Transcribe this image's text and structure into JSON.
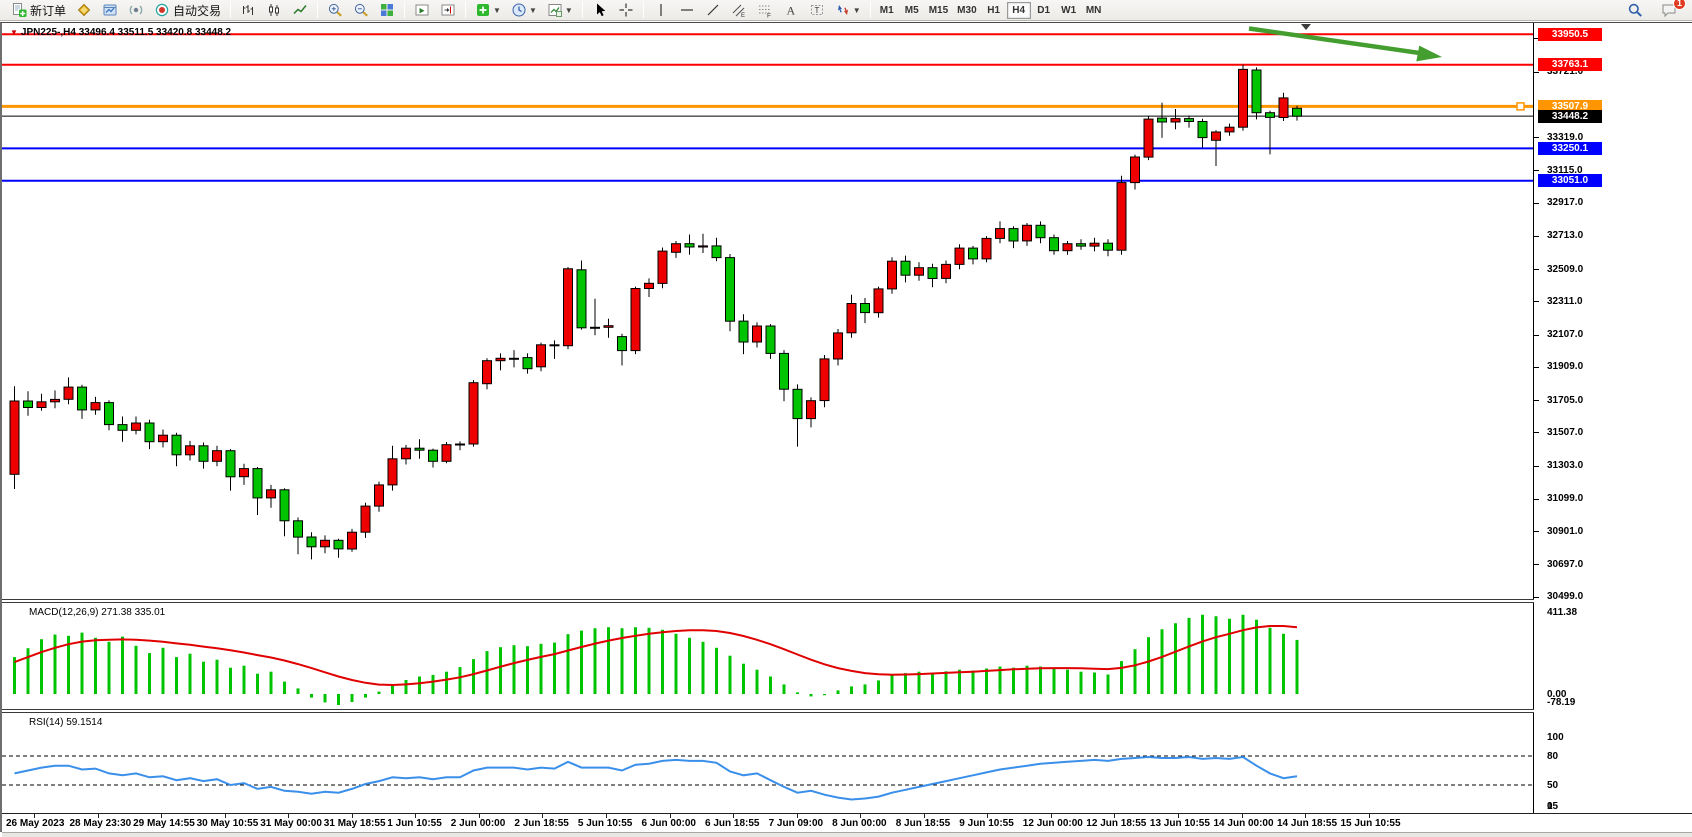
{
  "toolbar": {
    "new_order": "新订单",
    "autotrading": "自动交易",
    "badge": "1",
    "icon_names": [
      "new-order",
      "market-watch",
      "data-window",
      "strategy-tester",
      "autotrading",
      "bar-chart",
      "candlestick-chart",
      "line-chart",
      "zoom-in",
      "zoom-out",
      "tile-windows",
      "auto-scroll",
      "chart-shift",
      "indicators",
      "periods",
      "templates",
      "cursor",
      "crosshair",
      "vertical-line",
      "horizontal-line",
      "trendline",
      "equidistant-channel",
      "fibonacci",
      "text",
      "text-label",
      "arrows",
      "search",
      "chat"
    ],
    "timeframes": [
      "M1",
      "M5",
      "M15",
      "M30",
      "H1",
      "H4",
      "D1",
      "W1",
      "MN"
    ],
    "active_timeframe": "H4"
  },
  "chart": {
    "title": "JPN225-,H4 33496.4 33511.5 33420.8 33448.2",
    "symbol": "JPN225-",
    "period": "H4",
    "ohlc": {
      "open": "33496.4",
      "high": "33511.5",
      "low": "33420.8",
      "close": "33448.2"
    }
  },
  "macd_pane": {
    "label": "MACD(12,26,9) 271.38 335.01",
    "ticks": [
      {
        "label": "411.38",
        "value": 411.38
      },
      {
        "label": "0.00",
        "value": 0
      },
      {
        "label": "-78.19",
        "value": -78.19
      }
    ]
  },
  "rsi_pane": {
    "label": "RSI(14) 59.1514",
    "ticks": [
      {
        "label": "100",
        "value": 100
      },
      {
        "label": "80",
        "value": 80
      },
      {
        "label": "50",
        "value": 50
      },
      {
        "label": "15",
        "value": 15
      },
      {
        "label": "0",
        "value": 0
      }
    ]
  },
  "chart_data": {
    "type": "candlestick",
    "symbol": "JPN225-",
    "timeframe": "H4",
    "colors": {
      "up": "#ee0000",
      "down": "#00c400",
      "outline": "#000000",
      "macd_hist": "#00c400",
      "macd_signal": "#e00000",
      "rsi": "#3a8fea",
      "arrow": "#449e2f",
      "resistance": "#ff0000",
      "support": "#0000ff",
      "order": "#ff9500",
      "current": "#000000"
    },
    "levels": [
      {
        "label": "33950.5",
        "value": 33950.5,
        "color": "#ff0000",
        "type": "resistance"
      },
      {
        "label": "33763.1",
        "value": 33763.1,
        "color": "#ff0000",
        "type": "resistance"
      },
      {
        "label": "33507.9",
        "value": 33507.9,
        "color": "#ff9500",
        "type": "order",
        "handle": true
      },
      {
        "label": "33448.2",
        "value": 33448.2,
        "color": "#000000",
        "type": "current-price"
      },
      {
        "label": "33250.1",
        "value": 33250.1,
        "color": "#0000ff",
        "type": "support"
      },
      {
        "label": "33051.0",
        "value": 33051.0,
        "color": "#0000ff",
        "type": "support"
      }
    ],
    "y_axis_ticks": [
      {
        "label": "33925.0",
        "value": 33925.0
      },
      {
        "label": "33721.0",
        "value": 33721.0
      },
      {
        "label": "33319.0",
        "value": 33319.0
      },
      {
        "label": "33115.0",
        "value": 33115.0
      },
      {
        "label": "32917.0",
        "value": 32917.0
      },
      {
        "label": "32713.0",
        "value": 32713.0
      },
      {
        "label": "32509.0",
        "value": 32509.0
      },
      {
        "label": "32311.0",
        "value": 32311.0
      },
      {
        "label": "32107.0",
        "value": 32107.0
      },
      {
        "label": "31909.0",
        "value": 31909.0
      },
      {
        "label": "31705.0",
        "value": 31705.0
      },
      {
        "label": "31507.0",
        "value": 31507.0
      },
      {
        "label": "31303.0",
        "value": 31303.0
      },
      {
        "label": "31099.0",
        "value": 31099.0
      },
      {
        "label": "30901.0",
        "value": 30901.0
      },
      {
        "label": "30697.0",
        "value": 30697.0
      },
      {
        "label": "30499.0",
        "value": 30499.0
      }
    ],
    "x_axis_ticks": [
      "26 May 2023",
      "28 May 23:30",
      "29 May 14:55",
      "30 May 10:55",
      "31 May 00:00",
      "31 May 18:55",
      "1 Jun 10:55",
      "2 Jun 00:00",
      "2 Jun 18:55",
      "5 Jun 10:55",
      "6 Jun 00:00",
      "6 Jun 18:55",
      "7 Jun 09:00",
      "8 Jun 00:00",
      "8 Jun 18:55",
      "9 Jun 10:55",
      "12 Jun 00:00",
      "12 Jun 18:55",
      "13 Jun 10:55",
      "14 Jun 00:00",
      "14 Jun 18:55",
      "15 Jun 10:55"
    ],
    "candles": [
      [
        31250,
        31790,
        31160,
        31700
      ],
      [
        31700,
        31760,
        31610,
        31660
      ],
      [
        31660,
        31745,
        31640,
        31695
      ],
      [
        31695,
        31765,
        31655,
        31710
      ],
      [
        31710,
        31845,
        31680,
        31785
      ],
      [
        31785,
        31800,
        31590,
        31645
      ],
      [
        31645,
        31725,
        31615,
        31690
      ],
      [
        31690,
        31705,
        31520,
        31555
      ],
      [
        31555,
        31605,
        31450,
        31520
      ],
      [
        31520,
        31605,
        31495,
        31565
      ],
      [
        31565,
        31585,
        31405,
        31450
      ],
      [
        31450,
        31525,
        31415,
        31490
      ],
      [
        31490,
        31505,
        31300,
        31370
      ],
      [
        31370,
        31455,
        31335,
        31425
      ],
      [
        31425,
        31445,
        31285,
        31330
      ],
      [
        31330,
        31425,
        31300,
        31395
      ],
      [
        31395,
        31405,
        31150,
        31235
      ],
      [
        31235,
        31315,
        31185,
        31285
      ],
      [
        31285,
        31295,
        31000,
        31105
      ],
      [
        31105,
        31185,
        31045,
        31155
      ],
      [
        31155,
        31165,
        30870,
        30965
      ],
      [
        30965,
        30985,
        30760,
        30865
      ],
      [
        30865,
        30895,
        30728,
        30805
      ],
      [
        30805,
        30875,
        30765,
        30845
      ],
      [
        30845,
        30855,
        30738,
        30792
      ],
      [
        30792,
        30915,
        30775,
        30895
      ],
      [
        30895,
        31075,
        30860,
        31055
      ],
      [
        31055,
        31205,
        31020,
        31185
      ],
      [
        31185,
        31425,
        31150,
        31345
      ],
      [
        31345,
        31430,
        31310,
        31410
      ],
      [
        31410,
        31465,
        31345,
        31398
      ],
      [
        31398,
        31408,
        31292,
        31330
      ],
      [
        31330,
        31448,
        31318,
        31432
      ],
      [
        31432,
        31452,
        31398,
        31436
      ],
      [
        31436,
        31828,
        31420,
        31812
      ],
      [
        31806,
        31962,
        31772,
        31947
      ],
      [
        31947,
        31992,
        31888,
        31962
      ],
      [
        31962,
        32012,
        31906,
        31958
      ],
      [
        31966,
        31992,
        31868,
        31898
      ],
      [
        31910,
        32058,
        31882,
        32045
      ],
      [
        32045,
        32072,
        31958,
        32039
      ],
      [
        32039,
        32522,
        32018,
        32511
      ],
      [
        32505,
        32562,
        32138,
        32149
      ],
      [
        32149,
        32328,
        32104,
        32152
      ],
      [
        32152,
        32205,
        32088,
        32162
      ],
      [
        32095,
        32112,
        31918,
        32009
      ],
      [
        32009,
        32402,
        31988,
        32390
      ],
      [
        32390,
        32452,
        32338,
        32422
      ],
      [
        32422,
        32642,
        32392,
        32620
      ],
      [
        32612,
        32682,
        32578,
        32665
      ],
      [
        32665,
        32722,
        32598,
        32645
      ],
      [
        32645,
        32726,
        32608,
        32652
      ],
      [
        32652,
        32702,
        32558,
        32580
      ],
      [
        32580,
        32602,
        32128,
        32190
      ],
      [
        32190,
        32232,
        31988,
        32062
      ],
      [
        32062,
        32182,
        32028,
        32160
      ],
      [
        32160,
        32172,
        31958,
        31992
      ],
      [
        31992,
        32012,
        31698,
        31772
      ],
      [
        31772,
        31802,
        31420,
        31592
      ],
      [
        31592,
        31722,
        31538,
        31702
      ],
      [
        31702,
        31982,
        31662,
        31958
      ],
      [
        31958,
        32142,
        31918,
        32118
      ],
      [
        32118,
        32352,
        32088,
        32298
      ],
      [
        32298,
        32332,
        32178,
        32242
      ],
      [
        32242,
        32402,
        32212,
        32388
      ],
      [
        32388,
        32582,
        32358,
        32558
      ],
      [
        32558,
        32592,
        32428,
        32472
      ],
      [
        32472,
        32552,
        32438,
        32518
      ],
      [
        32518,
        32542,
        32398,
        32452
      ],
      [
        32452,
        32562,
        32422,
        32538
      ],
      [
        32538,
        32662,
        32508,
        32638
      ],
      [
        32638,
        32652,
        32538,
        32572
      ],
      [
        32572,
        32712,
        32552,
        32698
      ],
      [
        32698,
        32802,
        32668,
        32758
      ],
      [
        32758,
        32772,
        32638,
        32682
      ],
      [
        32682,
        32792,
        32652,
        32778
      ],
      [
        32778,
        32802,
        32668,
        32702
      ],
      [
        32702,
        32722,
        32598,
        32622
      ],
      [
        32622,
        32682,
        32598,
        32665
      ],
      [
        32665,
        32692,
        32628,
        32650
      ],
      [
        32650,
        32702,
        32618,
        32668
      ],
      [
        32668,
        32692,
        32588,
        32625
      ],
      [
        32625,
        33082,
        32598,
        33040
      ],
      [
        33040,
        33212,
        32998,
        33197
      ],
      [
        33197,
        33447,
        33178,
        33430
      ],
      [
        33436,
        33531,
        33316,
        33412
      ],
      [
        33412,
        33492,
        33368,
        33433
      ],
      [
        33433,
        33452,
        33378,
        33415
      ],
      [
        33415,
        33432,
        33254,
        33316
      ],
      [
        33300,
        33362,
        33142,
        33351
      ],
      [
        33351,
        33402,
        33328,
        33380
      ],
      [
        33380,
        33763,
        33358,
        33735
      ],
      [
        33731,
        33747,
        33428,
        33469
      ],
      [
        33469,
        33482,
        33213,
        33440
      ],
      [
        33440,
        33592,
        33418,
        33560
      ],
      [
        33496.4,
        33511.5,
        33420.8,
        33448.2
      ]
    ],
    "macd": {
      "params": "12,26,9",
      "value": 271.38,
      "signal_value": 335.01,
      "scale_max": 411.38,
      "scale_min": -78.19,
      "histogram": [
        185,
        230,
        275,
        298,
        292,
        308,
        282,
        262,
        288,
        242,
        205,
        232,
        185,
        202,
        162,
        172,
        132,
        142,
        102,
        112,
        62,
        28,
        -18,
        -42,
        -55,
        -40,
        -18,
        12,
        45,
        70,
        88,
        96,
        112,
        135,
        175,
        215,
        235,
        245,
        240,
        252,
        258,
        300,
        318,
        330,
        335,
        330,
        335,
        332,
        322,
        302,
        282,
        262,
        232,
        192,
        152,
        122,
        88,
        48,
        8,
        -12,
        -6,
        18,
        38,
        48,
        68,
        95,
        105,
        112,
        108,
        114,
        122,
        118,
        128,
        138,
        132,
        142,
        138,
        128,
        122,
        112,
        108,
        98,
        165,
        225,
        285,
        325,
        355,
        382,
        398,
        390,
        378,
        398,
        372,
        332,
        302,
        271.38
      ],
      "signal": [
        160,
        185,
        210,
        232,
        250,
        263,
        270,
        272,
        274,
        272,
        268,
        262,
        254,
        247,
        238,
        230,
        219,
        208,
        195,
        183,
        168,
        150,
        130,
        109,
        88,
        70,
        56,
        47,
        45,
        48,
        54,
        62,
        72,
        84,
        100,
        118,
        137,
        155,
        171,
        186,
        200,
        218,
        236,
        253,
        268,
        281,
        292,
        302,
        310,
        316,
        320,
        320,
        316,
        306,
        291,
        272,
        250,
        225,
        198,
        172,
        149,
        130,
        116,
        105,
        99,
        97,
        98,
        100,
        103,
        106,
        109,
        112,
        116,
        120,
        124,
        127,
        129,
        130,
        130,
        129,
        127,
        125,
        131,
        144,
        163,
        186,
        212,
        239,
        264,
        285,
        302,
        320,
        334,
        341,
        341,
        335.01
      ]
    },
    "rsi": {
      "period": 14,
      "value": 59.1514,
      "levels": [
        80,
        50,
        15
      ],
      "values": [
        62,
        65,
        68,
        70,
        70,
        66,
        67,
        62,
        60,
        62,
        58,
        59,
        55,
        57,
        54,
        56,
        50,
        52,
        46,
        48,
        44,
        43,
        41,
        43,
        42,
        46,
        51,
        54,
        58,
        57,
        58,
        56,
        58,
        58,
        65,
        68,
        68,
        68,
        66,
        68,
        67,
        74,
        68,
        68,
        68,
        65,
        71,
        72,
        75,
        76,
        75,
        75,
        73,
        64,
        60,
        62,
        55,
        48,
        42,
        44,
        40,
        37,
        35,
        36,
        38,
        42,
        45,
        48,
        51,
        54,
        57,
        60,
        63,
        66,
        68,
        70,
        72,
        73,
        74,
        75,
        76,
        75,
        77,
        78,
        79,
        78,
        78,
        79,
        77,
        78,
        77,
        79,
        70,
        62,
        57,
        59.15
      ]
    },
    "annotation": {
      "type": "arrow",
      "color": "#449e2f",
      "direction": "down-right"
    }
  }
}
